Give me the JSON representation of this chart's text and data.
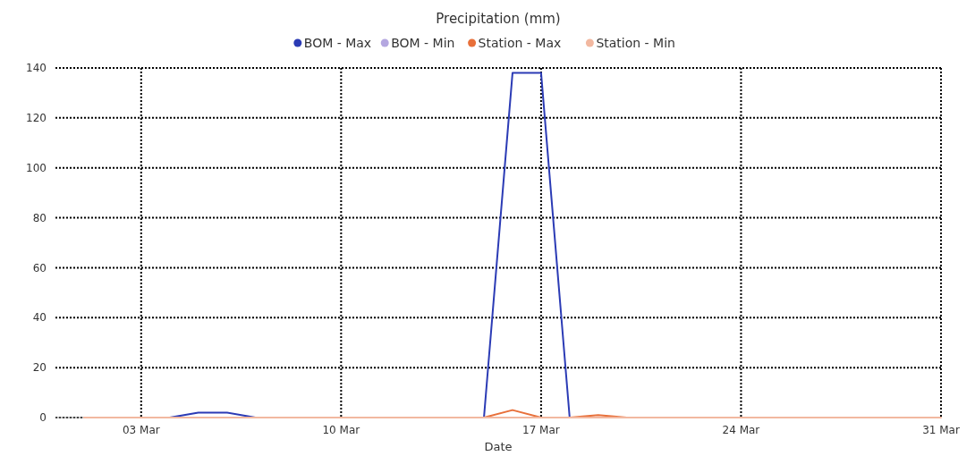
{
  "chart_data": {
    "type": "line",
    "title": "Precipitation (mm)",
    "xlabel": "Date",
    "x": [
      "--03-01",
      "--03-02",
      "--03-03",
      "--03-04",
      "--03-05",
      "--03-06",
      "--03-07",
      "--03-08",
      "--03-09",
      "--03-10",
      "--03-11",
      "--03-12",
      "--03-13",
      "--03-14",
      "--03-15",
      "--03-16",
      "--03-17",
      "--03-18",
      "--03-19",
      "--03-20",
      "--03-21",
      "--03-22",
      "--03-23",
      "--03-24",
      "--03-25",
      "--03-26",
      "--03-27",
      "--03-28",
      "--03-29",
      "--03-30",
      "--03-31"
    ],
    "series": [
      {
        "name": "BOM - Max",
        "color": "#2b3bb5",
        "values": [
          null,
          null,
          null,
          0,
          2,
          2,
          0,
          null,
          null,
          null,
          null,
          null,
          null,
          null,
          0,
          138,
          138,
          0,
          null,
          null,
          null,
          null,
          null,
          null,
          null,
          null,
          null,
          null,
          null,
          null,
          null
        ]
      },
      {
        "name": "BOM - Min",
        "color": "#b4a7e0",
        "values": [
          null,
          null,
          null,
          null,
          null,
          null,
          null,
          null,
          null,
          null,
          null,
          null,
          null,
          null,
          null,
          null,
          null,
          null,
          null,
          null,
          null,
          null,
          null,
          null,
          null,
          null,
          null,
          null,
          null,
          null,
          null
        ]
      },
      {
        "name": "Station - Max",
        "color": "#e8703a",
        "values": [
          null,
          null,
          null,
          null,
          null,
          null,
          null,
          null,
          null,
          null,
          null,
          null,
          null,
          null,
          0,
          3,
          0,
          0,
          1,
          0,
          null,
          null,
          null,
          null,
          null,
          null,
          null,
          null,
          null,
          null,
          null
        ]
      },
      {
        "name": "Station - Min",
        "color": "#f2b8a0",
        "values": [
          0,
          0,
          0,
          0,
          0,
          0,
          0,
          0,
          0,
          0,
          0,
          0,
          0,
          0,
          0,
          0,
          0,
          0,
          0,
          0,
          0,
          0,
          0,
          0,
          0,
          0,
          0,
          0,
          0,
          0,
          0
        ]
      }
    ],
    "xlim": [
      "--02-29",
      "--03-31"
    ],
    "xticks": [
      {
        "value": "--03-03",
        "label": "03 Mar"
      },
      {
        "value": "--03-10",
        "label": "10 Mar"
      },
      {
        "value": "--03-17",
        "label": "17 Mar"
      },
      {
        "value": "--03-24",
        "label": "24 Mar"
      },
      {
        "value": "--03-31",
        "label": "31 Mar"
      }
    ],
    "ylim": [
      0,
      140
    ],
    "yticks": [
      0,
      20,
      40,
      60,
      80,
      100,
      120,
      140
    ],
    "grid": true,
    "legend": "top"
  }
}
